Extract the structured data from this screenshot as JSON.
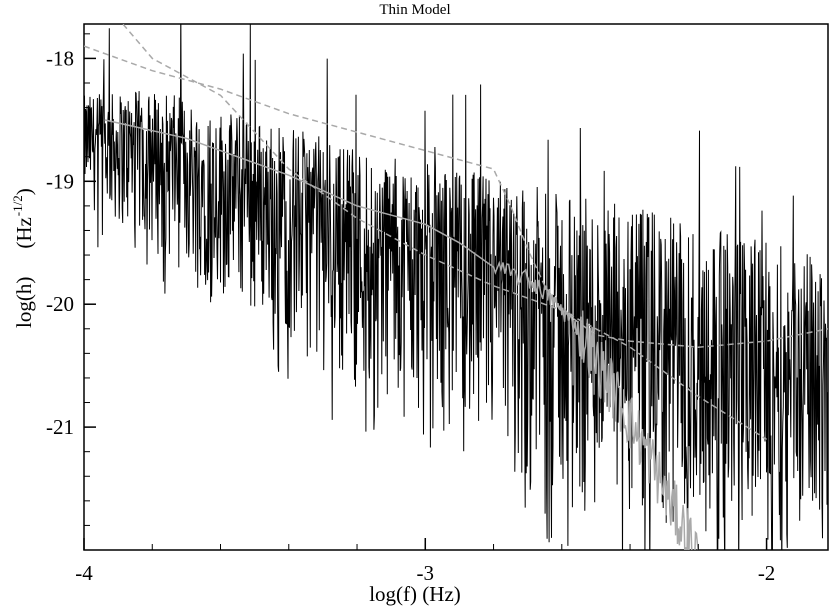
{
  "chart_data": {
    "type": "line",
    "title": "Thin Model",
    "xlabel": "log(f) (Hz)",
    "ylabel": {
      "main": "log(h)",
      "unit_prefix": "(Hz",
      "unit_exponent": "-1/2",
      "unit_suffix": ")"
    },
    "xlim": [
      -4,
      -1.82
    ],
    "ylim": [
      -22.0,
      -17.72
    ],
    "x_ticks": [
      -4,
      -3,
      -2
    ],
    "x_tick_labels": [
      "-4",
      "-3",
      "-2"
    ],
    "y_ticks": [
      -18,
      -19,
      -20,
      -21
    ],
    "y_tick_labels": [
      "-18",
      "-19",
      "-20",
      "-21"
    ],
    "grid": false,
    "legend": "none",
    "series": [
      {
        "style": "black-noise",
        "color": "#000000",
        "upper": [
          [
            -4.0,
            -18.3
          ],
          [
            -3.8,
            -18.25
          ],
          [
            -3.6,
            -18.4
          ],
          [
            -3.4,
            -18.55
          ],
          [
            -3.2,
            -18.7
          ],
          [
            -3.0,
            -18.85
          ],
          [
            -2.8,
            -18.95
          ],
          [
            -2.6,
            -19.1
          ],
          [
            -2.4,
            -19.2
          ],
          [
            -2.2,
            -19.35
          ],
          [
            -2.0,
            -19.5
          ],
          [
            -1.82,
            -19.6
          ]
        ],
        "lower": [
          [
            -4.0,
            -19.2
          ],
          [
            -3.8,
            -19.6
          ],
          [
            -3.6,
            -20.0
          ],
          [
            -3.4,
            -20.35
          ],
          [
            -3.2,
            -20.7
          ],
          [
            -3.0,
            -21.05
          ],
          [
            -2.8,
            -21.4
          ],
          [
            -2.6,
            -21.75
          ],
          [
            -2.4,
            -22.0
          ],
          [
            -2.2,
            -22.0
          ],
          [
            -2.0,
            -22.0
          ],
          [
            -1.82,
            -22.0
          ]
        ]
      },
      {
        "style": "gray-solid",
        "color": "#a9a9a9",
        "points": [
          [
            -3.94,
            -18.5
          ],
          [
            -3.7,
            -18.65
          ],
          [
            -3.4,
            -18.95
          ],
          [
            -3.2,
            -19.2
          ],
          [
            -3.0,
            -19.35
          ],
          [
            -2.9,
            -19.5
          ],
          [
            -2.8,
            -19.7
          ],
          [
            -2.7,
            -19.8
          ],
          [
            -2.65,
            -19.9
          ],
          [
            -2.6,
            -20.05
          ],
          [
            -2.55,
            -20.2
          ],
          [
            -2.5,
            -20.45
          ],
          [
            -2.45,
            -20.7
          ],
          [
            -2.4,
            -20.95
          ],
          [
            -2.35,
            -21.2
          ],
          [
            -2.3,
            -21.5
          ],
          [
            -2.25,
            -21.8
          ],
          [
            -2.2,
            -22.0
          ]
        ]
      },
      {
        "style": "gray-dashed",
        "color": "#a9a9a9",
        "points": [
          [
            -4.0,
            -17.35
          ],
          [
            -3.8,
            -18.0
          ],
          [
            -3.6,
            -18.3
          ],
          [
            -3.5,
            -18.6
          ],
          [
            -3.4,
            -18.9
          ],
          [
            -3.3,
            -19.1
          ],
          [
            -3.2,
            -19.3
          ],
          [
            -3.0,
            -19.6
          ],
          [
            -2.8,
            -19.85
          ],
          [
            -2.6,
            -20.05
          ],
          [
            -2.4,
            -20.35
          ],
          [
            -2.2,
            -20.75
          ],
          [
            -2.0,
            -21.1
          ]
        ]
      },
      {
        "style": "gray-dashed",
        "color": "#a9a9a9",
        "points": [
          [
            -4.0,
            -17.9
          ],
          [
            -3.8,
            -18.1
          ],
          [
            -3.6,
            -18.25
          ],
          [
            -3.4,
            -18.45
          ],
          [
            -3.2,
            -18.6
          ],
          [
            -3.0,
            -18.75
          ],
          [
            -2.8,
            -18.9
          ],
          [
            -2.75,
            -19.2
          ],
          [
            -2.7,
            -19.55
          ],
          [
            -2.65,
            -19.85
          ],
          [
            -2.6,
            -20.05
          ],
          [
            -2.5,
            -20.25
          ],
          [
            -2.4,
            -20.3
          ],
          [
            -2.2,
            -20.35
          ],
          [
            -2.0,
            -20.3
          ],
          [
            -1.82,
            -20.2
          ]
        ]
      }
    ]
  }
}
